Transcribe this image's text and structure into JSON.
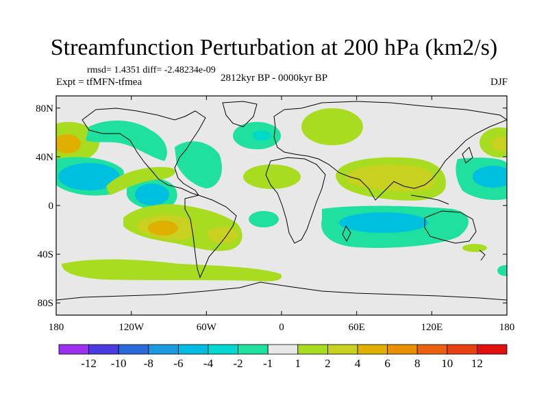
{
  "chart_data": {
    "type": "filled-contour-map",
    "title": "Streamfunction Perturbation at 200 hPa (km2/s)",
    "stats_line": "rmsd= 1.4351 diff= -2.48234e-09",
    "experiment": "Expt = tfMFN-tfmea",
    "period": "2812kyr BP - 0000kyr BP",
    "season": "DJF",
    "x_range": [
      -180,
      180
    ],
    "y_range": [
      -90,
      90
    ],
    "x_ticks": [
      {
        "v": -180,
        "label": "180"
      },
      {
        "v": -120,
        "label": "120W"
      },
      {
        "v": -60,
        "label": "60W"
      },
      {
        "v": 0,
        "label": "0"
      },
      {
        "v": 60,
        "label": "60E"
      },
      {
        "v": 120,
        "label": "120E"
      },
      {
        "v": 180,
        "label": "180"
      }
    ],
    "y_ticks": [
      {
        "v": 80,
        "label": "80N"
      },
      {
        "v": 40,
        "label": "40N"
      },
      {
        "v": 0,
        "label": "0"
      },
      {
        "v": -40,
        "label": "40S"
      },
      {
        "v": -80,
        "label": "80S"
      }
    ],
    "colorbar": {
      "labels": [
        "-12",
        "-10",
        "-8",
        "-6",
        "-4",
        "-2",
        "-1",
        "1",
        "2",
        "4",
        "6",
        "8",
        "10",
        "12"
      ],
      "colors": [
        "#a020f0",
        "#4040e0",
        "#3070d8",
        "#1aa0e0",
        "#00c0e0",
        "#00d8c8",
        "#20e0a0",
        "#e8e8e8",
        "#a8dc20",
        "#c8d020",
        "#e0b000",
        "#e89000",
        "#e86010",
        "#e82010"
      ]
    },
    "features": [
      {
        "name": "positive-north-pacific",
        "lon": -170,
        "lat": 48,
        "level": "4"
      },
      {
        "name": "negative-central-pacific-north",
        "lon": -160,
        "lat": 22,
        "level": "-4"
      },
      {
        "name": "negative-north-america",
        "lon": -125,
        "lat": 45,
        "level": "-2"
      },
      {
        "name": "positive-west-us",
        "lon": -95,
        "lat": 33,
        "level": "2"
      },
      {
        "name": "negative-caribbean",
        "lon": -70,
        "lat": 22,
        "level": "-2"
      },
      {
        "name": "negative-eastern-pacific",
        "lon": -105,
        "lat": 10,
        "level": "-4"
      },
      {
        "name": "negative-north-atlantic",
        "lon": -35,
        "lat": 55,
        "level": "-2"
      },
      {
        "name": "positive-europe",
        "lon": 35,
        "lat": 62,
        "level": "2"
      },
      {
        "name": "positive-north-africa",
        "lon": -5,
        "lat": 30,
        "level": "2"
      },
      {
        "name": "positive-south-asia",
        "lon": 80,
        "lat": 30,
        "level": "4"
      },
      {
        "name": "positive-south-pacific",
        "lon": -95,
        "lat": -23,
        "level": "6"
      },
      {
        "name": "positive-south-atlantic",
        "lon": -45,
        "lat": -30,
        "level": "4"
      },
      {
        "name": "negative-indian-ocean",
        "lon": 90,
        "lat": -20,
        "level": "-4"
      },
      {
        "name": "negative-west-pacific",
        "lon": 170,
        "lat": 22,
        "level": "-4"
      },
      {
        "name": "positive-west-pacific-north",
        "lon": 170,
        "lat": 45,
        "level": "4"
      },
      {
        "name": "positive-southern-ocean",
        "lon": -40,
        "lat": -58,
        "level": "2"
      },
      {
        "name": "negative-south-africa",
        "lon": -10,
        "lat": -15,
        "level": "-2"
      }
    ]
  }
}
